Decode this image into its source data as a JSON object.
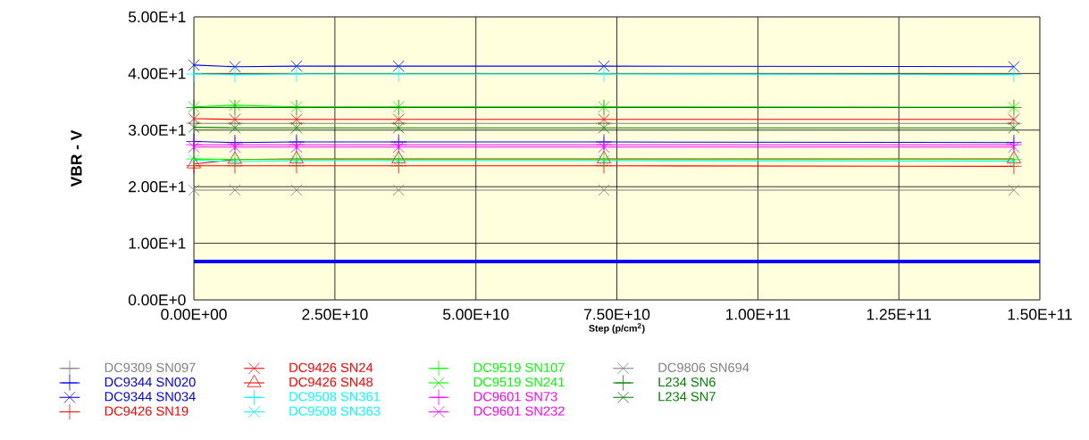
{
  "chart_data": {
    "type": "line",
    "xlabel": "Step (p/cm$^{2}$)",
    "ylabel": "VBR - V",
    "xlim": [
      0,
      150000000000
    ],
    "ylim": [
      0,
      50
    ],
    "xticks": [
      {
        "value": 0,
        "label": "0.00E+00"
      },
      {
        "value": 25000000000,
        "label": "2.50E+10"
      },
      {
        "value": 50000000000,
        "label": "5.00E+10"
      },
      {
        "value": 75000000000,
        "label": "7.50E+10"
      },
      {
        "value": 100000000000,
        "label": "1.00E+11"
      },
      {
        "value": 125000000000,
        "label": "1.25E+11"
      },
      {
        "value": 150000000000,
        "label": "1.50E+11"
      }
    ],
    "yticks": [
      {
        "value": 0,
        "label": "0.00E+0"
      },
      {
        "value": 10,
        "label": "1.00E+1"
      },
      {
        "value": 20,
        "label": "2.00E+1"
      },
      {
        "value": 30,
        "label": "3.00E+1"
      },
      {
        "value": 40,
        "label": "4.00E+1"
      },
      {
        "value": 50,
        "label": "5.00E+1"
      }
    ],
    "x": [
      0,
      7270000000,
      18200000000,
      36300000000,
      72700000000,
      145400000000
    ],
    "grid": true,
    "legend": "bottom",
    "ref_lines": [
      {
        "axis": "y",
        "value": 6.8,
        "color": "#0000ff"
      }
    ],
    "series": [
      {
        "name": "DC9309 SN097",
        "color": "#808080",
        "marker": "plus",
        "values": [
          31.2,
          31.2,
          31.2,
          31.2,
          31.2,
          31.2
        ]
      },
      {
        "name": "DC9344 SN020",
        "color": "#0000ff",
        "marker": "plus",
        "values": [
          28.0,
          27.8,
          27.9,
          27.9,
          27.9,
          27.8
        ]
      },
      {
        "name": "DC9344 SN034",
        "color": "#0000ff",
        "marker": "cross",
        "values": [
          41.5,
          41.2,
          41.3,
          41.3,
          41.3,
          41.2
        ]
      },
      {
        "name": "DC9426 SN19",
        "color": "#ff0000",
        "marker": "plus",
        "values": [
          23.7,
          23.7,
          23.7,
          23.7,
          23.7,
          23.6
        ]
      },
      {
        "name": "DC9426 SN24",
        "color": "#ff0000",
        "marker": "cross",
        "values": [
          32.0,
          31.9,
          31.9,
          31.9,
          31.9,
          31.9
        ]
      },
      {
        "name": "DC9426 SN48",
        "color": "#ff0000",
        "marker": "triangle",
        "values": [
          24.0,
          24.8,
          24.9,
          24.9,
          24.9,
          24.9
        ]
      },
      {
        "name": "DC9508 SN361",
        "color": "#00ffff",
        "marker": "plus",
        "values": [
          39.9,
          39.8,
          39.9,
          39.9,
          39.9,
          39.8
        ]
      },
      {
        "name": "DC9508 SN363",
        "color": "#00ffff",
        "marker": "cross",
        "values": [
          24.7,
          24.4,
          24.6,
          24.6,
          24.6,
          24.5
        ]
      },
      {
        "name": "DC9519 SN107",
        "color": "#00ff00",
        "marker": "plus",
        "values": [
          24.9,
          24.8,
          24.8,
          24.8,
          24.8,
          24.8
        ]
      },
      {
        "name": "DC9519 SN241",
        "color": "#00ff00",
        "marker": "cross",
        "values": [
          34.1,
          34.4,
          34.1,
          34.1,
          34.1,
          34.0
        ]
      },
      {
        "name": "DC9601 SN73",
        "color": "#ff00ff",
        "marker": "plus",
        "values": [
          27.4,
          27.4,
          27.4,
          27.4,
          27.4,
          27.4
        ]
      },
      {
        "name": "DC9601 SN232",
        "color": "#ff00ff",
        "marker": "cross",
        "values": [
          27.0,
          27.0,
          27.0,
          27.0,
          27.0,
          27.0
        ]
      },
      {
        "name": "DC9806 SN694",
        "color": "#808080",
        "marker": "cross",
        "values": [
          19.4,
          19.4,
          19.4,
          19.4,
          19.4,
          19.4
        ]
      },
      {
        "name": "L234 SN6",
        "color": "#008000",
        "marker": "plus",
        "values": [
          34.0,
          34.0,
          34.0,
          34.0,
          34.0,
          34.0
        ]
      },
      {
        "name": "L234 SN7",
        "color": "#008000",
        "marker": "cross",
        "values": [
          30.5,
          30.4,
          30.4,
          30.4,
          30.4,
          30.4
        ]
      }
    ]
  }
}
